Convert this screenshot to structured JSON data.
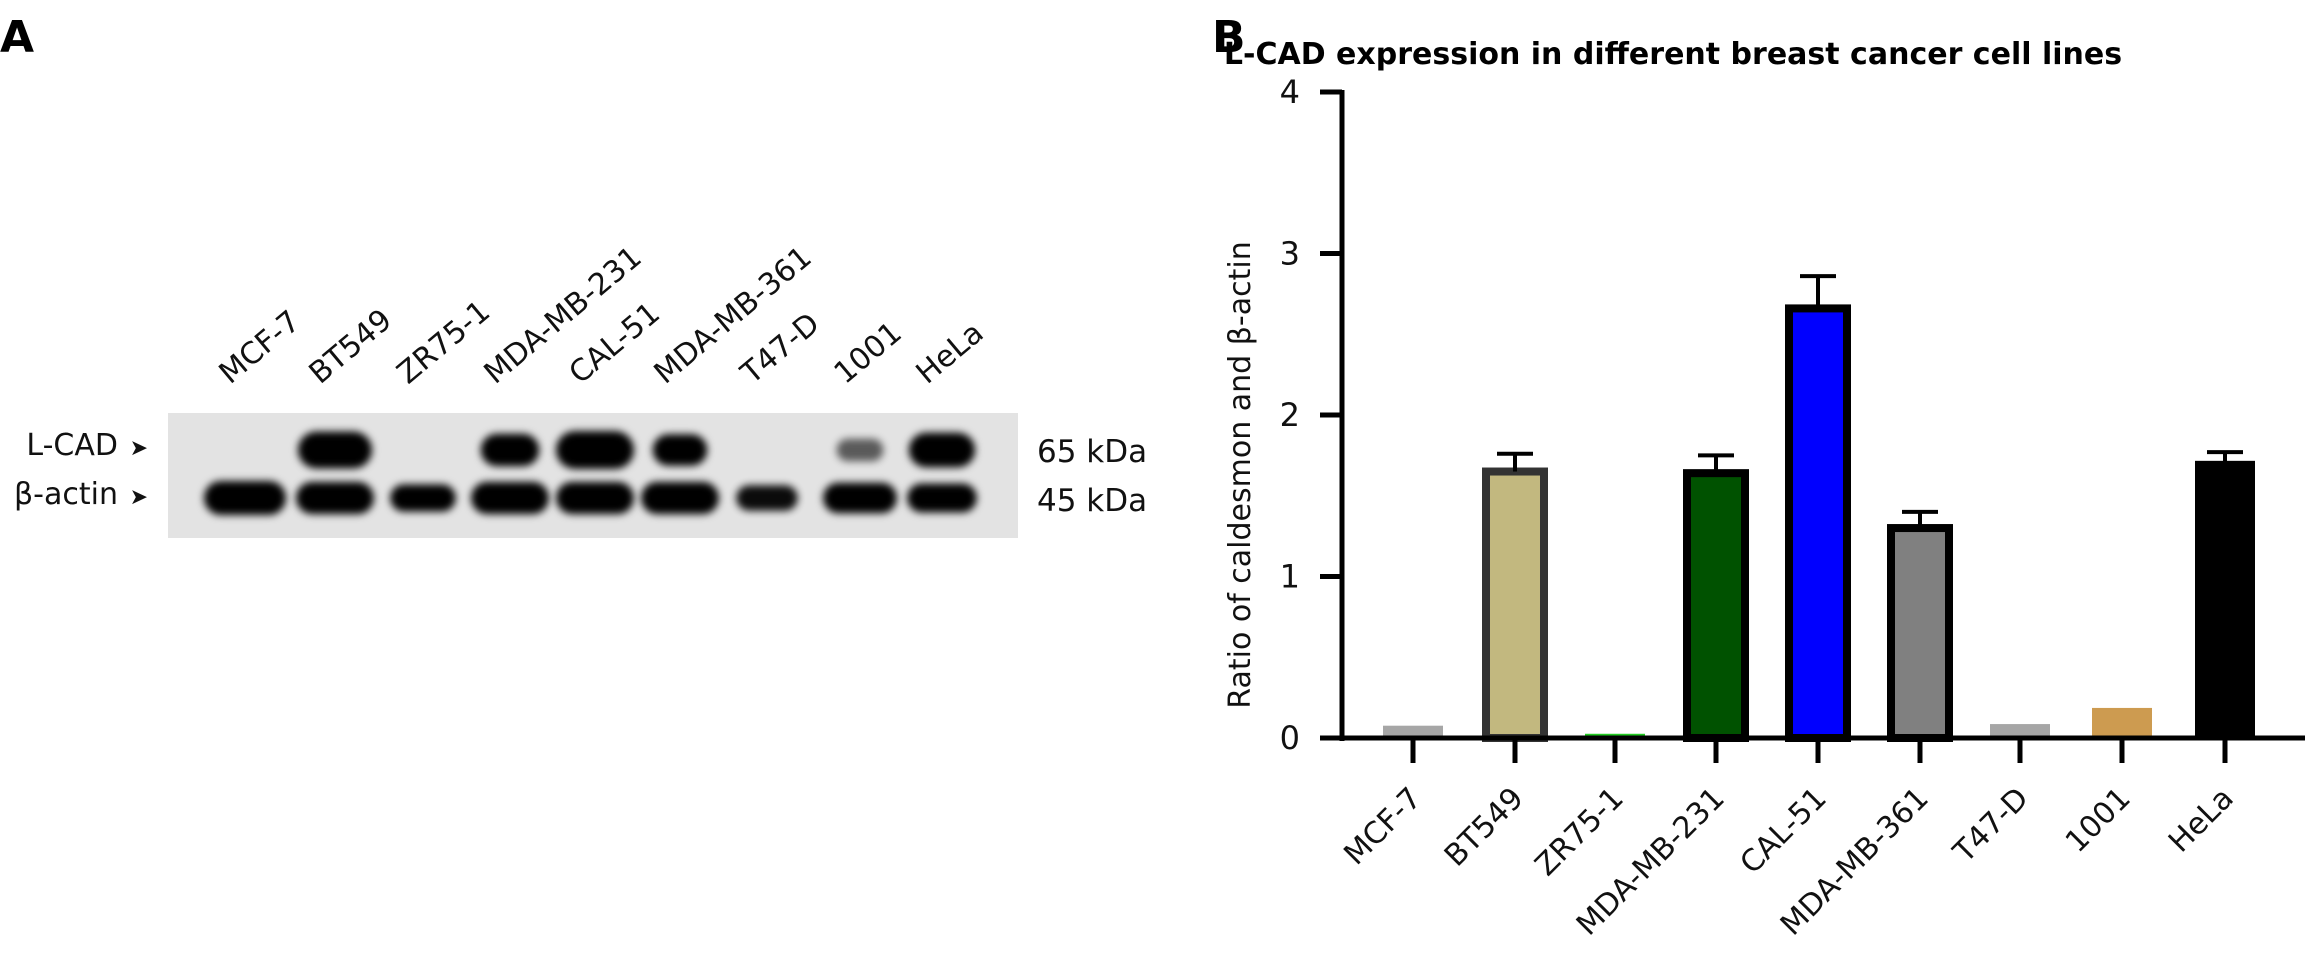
{
  "panel_a": {
    "label": "A",
    "lanes": [
      "MCF-7",
      "BT549",
      "ZR75-1",
      "MDA-MB-231",
      "CAL-51",
      "MDA-MB-361",
      "T47-D",
      "1001",
      "HeLa"
    ],
    "left_labels": [
      "L-CAD",
      "β-actin"
    ],
    "right_labels": [
      "65 kDa",
      "45 kDa"
    ],
    "lcad_intensity": [
      0,
      0.95,
      0,
      0.75,
      1.0,
      0.7,
      0,
      0.3,
      0.85
    ],
    "actin_intensity": [
      1.0,
      0.95,
      0.8,
      0.95,
      0.95,
      0.95,
      0.75,
      0.9,
      0.85
    ]
  },
  "panel_b": {
    "label": "B"
  },
  "chart_data": {
    "type": "bar",
    "title": "L-CAD expression in different breast cancer cell lines",
    "xlabel": "",
    "ylabel": "Ratio of caldesmon and β-actin",
    "categories": [
      "MCF-7",
      "BT549",
      "ZR75-1",
      "MDA-MB-231",
      "CAL-51",
      "MDA-MB-361",
      "T47-D",
      "1001",
      "HeLa"
    ],
    "values": [
      0.07,
      1.65,
      0.02,
      1.64,
      2.66,
      1.3,
      0.08,
      0.18,
      1.71
    ],
    "errors": [
      0.01,
      0.11,
      0.0,
      0.11,
      0.2,
      0.1,
      0.01,
      0.01,
      0.06
    ],
    "colors": [
      "#a6a6a6",
      "#c2b87f",
      "#22cc22",
      "#005200",
      "#0000ff",
      "#808080",
      "#a6a6a6",
      "#cd9b50",
      "#000000"
    ],
    "outline_colors": [
      "#a6a6a6",
      "#333333",
      "#22cc22",
      "#000000",
      "#000000",
      "#000000",
      "#a6a6a6",
      "#cd9b50",
      "#000000"
    ],
    "ylim": [
      0,
      4
    ],
    "yticks": [
      "0",
      "1",
      "2",
      "3",
      "4"
    ],
    "grid": false
  }
}
